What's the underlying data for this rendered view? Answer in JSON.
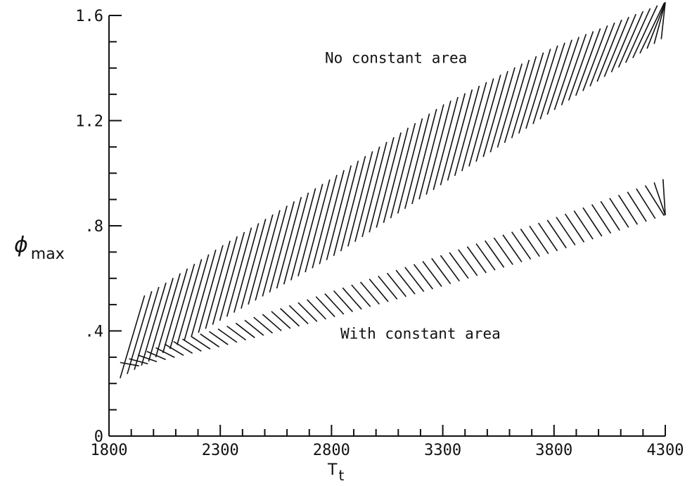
{
  "chart_data": {
    "type": "area",
    "xlabel": {
      "main": "T",
      "sub": "t"
    },
    "ylabel": {
      "symbol": "ϕ",
      "sub": "max"
    },
    "xlim": [
      1800,
      4300
    ],
    "ylim": [
      0,
      1.6
    ],
    "x_ticks": [
      {
        "value": 1800,
        "label": "1800"
      },
      {
        "value": 2300,
        "label": "2300"
      },
      {
        "value": 2800,
        "label": "2800"
      },
      {
        "value": 3300,
        "label": "3300"
      },
      {
        "value": 3800,
        "label": "3800"
      },
      {
        "value": 4300,
        "label": "4300"
      }
    ],
    "y_ticks": [
      {
        "value": 0,
        "label": "0"
      },
      {
        "value": 0.4,
        "label": ".4"
      },
      {
        "value": 0.8,
        "label": ".8"
      },
      {
        "value": 1.2,
        "label": "1.2"
      },
      {
        "value": 1.6,
        "label": "1.6"
      }
    ],
    "x_minor_step": 100,
    "y_minor_step": 0.1,
    "grid": false,
    "series": [
      {
        "name": "No constant area",
        "hatch": "forward",
        "lower": {
          "x": [
            1850,
            2050,
            2300,
            2800,
            3300,
            3800,
            4300
          ],
          "y": [
            0.22,
            0.32,
            0.44,
            0.68,
            0.96,
            1.24,
            1.52
          ]
        },
        "upper": {
          "x": [
            1850,
            2050,
            2300,
            2800,
            3300,
            3800,
            4300
          ],
          "y": [
            0.48,
            0.58,
            0.72,
            0.98,
            1.26,
            1.48,
            1.65
          ]
        }
      },
      {
        "name": "With constant area",
        "hatch": "back",
        "lower": {
          "x": [
            1850,
            2050,
            2300,
            2800,
            3300,
            3800,
            4300
          ],
          "y": [
            0.25,
            0.29,
            0.34,
            0.45,
            0.57,
            0.7,
            0.84
          ]
        },
        "upper": {
          "x": [
            1850,
            2050,
            2300,
            2800,
            3300,
            3800,
            4300
          ],
          "y": [
            0.28,
            0.35,
            0.41,
            0.55,
            0.69,
            0.83,
            0.98
          ]
        }
      }
    ],
    "annotations": [
      {
        "text": "No constant area",
        "x": 3090,
        "y": 1.42
      },
      {
        "text": "With constant area",
        "x": 3200,
        "y": 0.37
      }
    ]
  }
}
